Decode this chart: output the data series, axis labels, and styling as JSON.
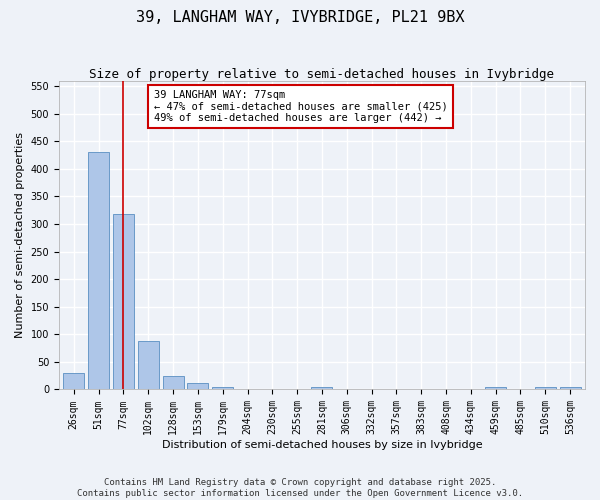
{
  "title": "39, LANGHAM WAY, IVYBRIDGE, PL21 9BX",
  "subtitle": "Size of property relative to semi-detached houses in Ivybridge",
  "xlabel": "Distribution of semi-detached houses by size in Ivybridge",
  "ylabel": "Number of semi-detached properties",
  "categories": [
    "26sqm",
    "51sqm",
    "77sqm",
    "102sqm",
    "128sqm",
    "153sqm",
    "179sqm",
    "204sqm",
    "230sqm",
    "255sqm",
    "281sqm",
    "306sqm",
    "332sqm",
    "357sqm",
    "383sqm",
    "408sqm",
    "434sqm",
    "459sqm",
    "485sqm",
    "510sqm",
    "536sqm"
  ],
  "values": [
    30,
    430,
    318,
    87,
    25,
    11,
    5,
    0,
    0,
    0,
    5,
    0,
    0,
    0,
    0,
    0,
    0,
    5,
    0,
    5,
    5
  ],
  "bar_color": "#aec6e8",
  "bar_edge_color": "#5a8fc2",
  "vline_x_index": 2,
  "vline_color": "#cc0000",
  "annotation_text": "39 LANGHAM WAY: 77sqm\n← 47% of semi-detached houses are smaller (425)\n49% of semi-detached houses are larger (442) →",
  "annotation_box_color": "#ffffff",
  "annotation_box_edge": "#cc0000",
  "ylim": [
    0,
    560
  ],
  "yticks": [
    0,
    50,
    100,
    150,
    200,
    250,
    300,
    350,
    400,
    450,
    500,
    550
  ],
  "background_color": "#eef2f8",
  "grid_color": "#ffffff",
  "footer": "Contains HM Land Registry data © Crown copyright and database right 2025.\nContains public sector information licensed under the Open Government Licence v3.0.",
  "title_fontsize": 11,
  "subtitle_fontsize": 9,
  "axis_label_fontsize": 8,
  "tick_fontsize": 7,
  "annotation_fontsize": 7.5,
  "footer_fontsize": 6.5
}
